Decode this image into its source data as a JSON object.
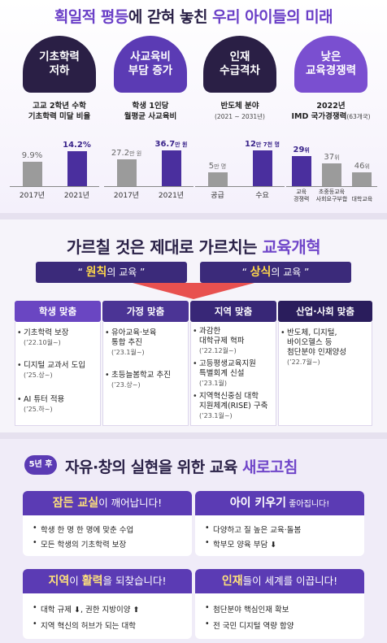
{
  "section1": {
    "title": {
      "hl1": "획일적 평등",
      "mid": "에 갇혀 놓친 ",
      "hl2": "우리 아이들의 미래"
    },
    "panels": [
      {
        "pill": [
          "기초학력",
          "저하"
        ],
        "subtitle": [
          "고교 2학년 수학",
          "기초학력 미달 비율"
        ],
        "bars": [
          {
            "category": "2017년",
            "label": "9.9%",
            "value": 9.9
          },
          {
            "category": "2021년",
            "label": "14.2%",
            "value": 14.2
          }
        ]
      },
      {
        "pill": [
          "사교육비",
          "부담 증가"
        ],
        "subtitle": [
          "학생 1인당",
          "월평균 사교육비"
        ],
        "bars": [
          {
            "category": "2017년",
            "label": "27.2",
            "unit": "만 원",
            "value": 27.2
          },
          {
            "category": "2021년",
            "label": "36.7",
            "unit": "만 원",
            "value": 36.7
          }
        ]
      },
      {
        "pill": [
          "인재",
          "수급격차"
        ],
        "subtitle": [
          "반도체 분야"
        ],
        "subtitle_small": "(2021 ~ 2031년)",
        "bars": [
          {
            "category": "공급",
            "label": "5",
            "unit": "만 명",
            "value": 5
          },
          {
            "category": "수요",
            "label": "12",
            "unit": "만 7천 명",
            "value": 12.7
          }
        ]
      },
      {
        "pill": [
          "낮은",
          "교육경쟁력"
        ],
        "subtitle": [
          "2022년",
          "IMD 국가경쟁력"
        ],
        "subtitle_small": "(63개국)",
        "bars": [
          {
            "category": [
              "교육",
              "경쟁력"
            ],
            "label": "29",
            "unit": "위",
            "value": 29
          },
          {
            "category": [
              "초중등교육",
              "사회요구부합"
            ],
            "label": "37",
            "unit": "위",
            "value": 37
          },
          {
            "category": [
              "대학교육",
              ""
            ],
            "label": "46",
            "unit": "위",
            "value": 46
          }
        ]
      }
    ]
  },
  "section2": {
    "title": {
      "main": "가르칠 것은 제대로 가르치는 ",
      "hl": "교육개혁"
    },
    "banners": [
      {
        "open": "“ ",
        "hl": "원칙",
        "rest": "의 교육 ”"
      },
      {
        "open": "“ ",
        "hl": "상식",
        "rest": "의 교육 ”"
      }
    ],
    "columns": [
      {
        "header": "학생 맞춤",
        "items": [
          {
            "text": [
              "기초학력 보장"
            ],
            "date": "(’22.10월~)"
          },
          {
            "text": [
              "디지털 교과서 도입"
            ],
            "date": "(’25.상~)"
          },
          {
            "text": [
              "AI 튜터 적용"
            ],
            "date": "(’25.하~)"
          }
        ]
      },
      {
        "header": "가정 맞춤",
        "items": [
          {
            "text": [
              "유아교육·보육",
              "통합 추진"
            ],
            "date": "(’23.1월~)"
          },
          {
            "text": [
              "초등늘봄학교 추진"
            ],
            "date": "(’23.상~)"
          }
        ]
      },
      {
        "header": "지역 맞춤",
        "items": [
          {
            "text": [
              "과감한",
              "대학규제 혁파"
            ],
            "date": "(’22.12월~)"
          },
          {
            "text": [
              "고등평생교육지원",
              "특별회계 신설"
            ],
            "date": "(’23.1월)"
          },
          {
            "text": [
              "지역혁신중심 대학",
              "지원체계(RISE) 구축"
            ],
            "date": "(’23.1월~)"
          }
        ]
      },
      {
        "header": "산업·사회 맞춤",
        "items": [
          {
            "text": [
              "반도체, 디지털,",
              "바이오헬스 등",
              "첨단분야 인재양성"
            ],
            "date": "(’22.7월~)"
          }
        ]
      }
    ]
  },
  "section3": {
    "badge": "5년 후",
    "title": {
      "main": "자유·창의 실현을 위한 교육 ",
      "hl": "새로고침"
    },
    "cards": [
      {
        "hl": "잠든 교실",
        "rest": "이 깨어납니다!",
        "bullets": [
          "학생 한 명 한 명에 맞춘 수업",
          "모든 학생의 기초학력 보장"
        ]
      },
      {
        "hl": "아이 키우기",
        "rest": " 좋아집니다!",
        "bullets": [
          "다양하고 질 높은 교육·돌봄",
          "학부모 양육 부담 ⬇"
        ]
      },
      {
        "hl": "지역",
        "mid": "이 ",
        "hl2": "활력",
        "rest": "을 되찾습니다!",
        "bullets": [
          "대학 규제 ⬇, 권한 지방이양 ⬆",
          "지역 혁신의 허브가 되는 대학"
        ]
      },
      {
        "hl": "인재",
        "rest": "들이 세계를 이끕니다!",
        "bullets": [
          "첨단분야 핵심인재 확보",
          "전 국민 디지털 역량 함양"
        ]
      }
    ]
  },
  "colors": {
    "accent": "#5b3bb4",
    "dark": "#2a1f45",
    "highlight": "#ffd84a",
    "grey_bar": "#9b9b9b"
  }
}
